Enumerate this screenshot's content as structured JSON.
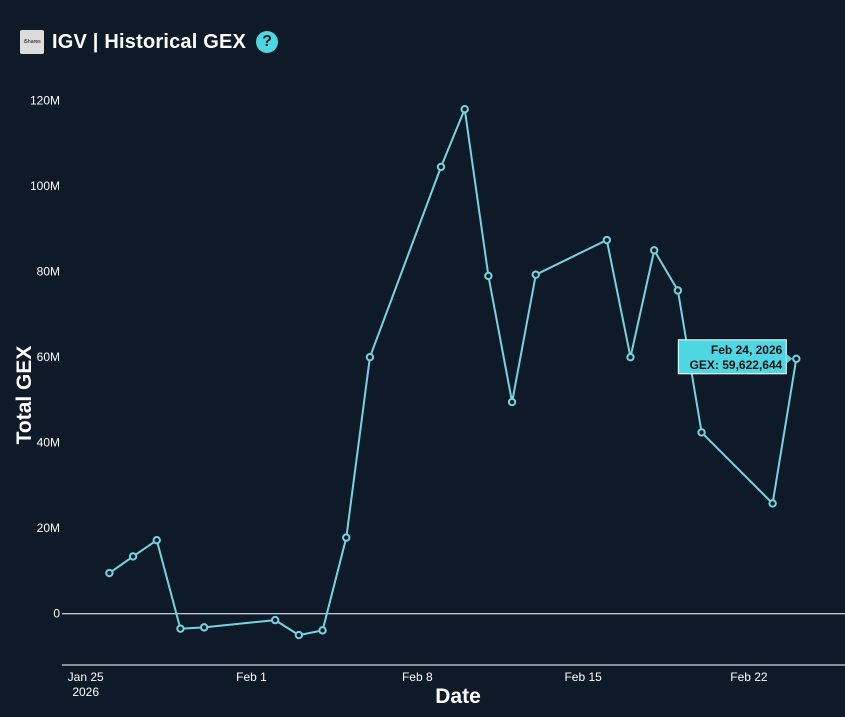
{
  "header": {
    "logo_text": "iShares",
    "title": "IGV | Historical GEX",
    "help_glyph": "?"
  },
  "colors": {
    "background": "#0f1a29",
    "line": "#78d3e0",
    "accent": "#4fd6e3",
    "text": "#ffffff"
  },
  "icons": {
    "help": "question-circle-icon",
    "logo": "ishares-logo"
  },
  "tooltip": {
    "date": "Feb 24, 2026",
    "value_text": "GEX: 59,622,644"
  },
  "chart_data": {
    "type": "line",
    "title": "IGV | Historical GEX",
    "xlabel": "Date",
    "ylabel": "Total GEX",
    "ylim": [
      -12000000,
      126000000
    ],
    "xlim": [
      "2026-01-24",
      "2026-02-25"
    ],
    "yticks": [
      0,
      20000000,
      40000000,
      60000000,
      80000000,
      100000000,
      120000000
    ],
    "ytick_labels": [
      "0",
      "20M",
      "40M",
      "60M",
      "80M",
      "100M",
      "120M"
    ],
    "xticks": [
      "2026-01-25",
      "2026-02-01",
      "2026-02-08",
      "2026-02-15",
      "2026-02-22"
    ],
    "xtick_labels": [
      "Jan 25",
      "Feb 1",
      "Feb 8",
      "Feb 15",
      "Feb 22"
    ],
    "xtick_sublabel": "2026",
    "grid": false,
    "zero_line": true,
    "markers": true,
    "series": [
      {
        "x": [
          "2026-01-26",
          "2026-01-27",
          "2026-01-28",
          "2026-01-29",
          "2026-01-30",
          "2026-02-02",
          "2026-02-03",
          "2026-02-04",
          "2026-02-05",
          "2026-02-06",
          "2026-02-09",
          "2026-02-10",
          "2026-02-11",
          "2026-02-12",
          "2026-02-13",
          "2026-02-16",
          "2026-02-17",
          "2026-02-18",
          "2026-02-19",
          "2026-02-20",
          "2026-02-23",
          "2026-02-24"
        ],
        "values": [
          9500000,
          13400000,
          17200000,
          -3500000,
          -3200000,
          -1500000,
          -5000000,
          -3900000,
          17800000,
          60000000,
          104500000,
          118000000,
          79000000,
          49500000,
          79300000,
          87400000,
          60000000,
          85000000,
          75600000,
          42400000,
          25800000,
          59622644
        ]
      }
    ]
  }
}
